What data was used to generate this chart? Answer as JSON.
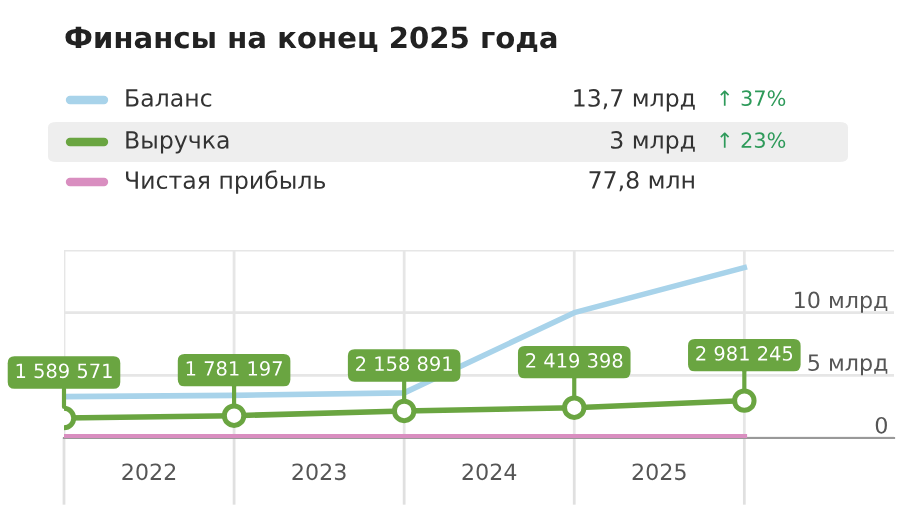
{
  "chart_data": {
    "type": "line",
    "title": "Финансы на конец 2025 года",
    "x": [
      2021,
      2022,
      2023,
      2024,
      2025
    ],
    "series": [
      {
        "name": "Баланс",
        "color": "#a8d3ea",
        "values": [
          3.3,
          3.4,
          3.6,
          10.0,
          13.6
        ],
        "marker": "none"
      },
      {
        "name": "Выручка",
        "color": "#6aa541",
        "values": [
          1.589571,
          1.781197,
          2.158891,
          2.419398,
          2.981245
        ],
        "marker": "circle"
      },
      {
        "name": "Чистая прибыль",
        "color": "#d98ec0",
        "values": [
          0.1,
          0.1,
          0.1,
          0.1,
          0.1
        ],
        "marker": "none"
      }
    ],
    "annotations": [
      "13,7 млрд",
      "↑ 37%",
      "3 млрд",
      "↑ 23%",
      "77,8 млн",
      {
        "text": "1 589 571",
        "x": 2021,
        "y": 1.589571
      },
      {
        "text": "1 781 197",
        "x": 2022,
        "y": 1.781197
      },
      {
        "text": "2 158 891",
        "x": 2023,
        "y": 2.158891
      },
      {
        "text": "2 419 398",
        "x": 2024,
        "y": 2.419398
      },
      {
        "text": "2 981 245",
        "x": 2025,
        "y": 2.981245
      }
    ],
    "xlim": [
      2021,
      2025.88
    ],
    "xticks": [
      {
        "value": 2021,
        "label": null
      },
      {
        "value": 2021.5,
        "label": "2022"
      },
      {
        "value": 2022,
        "label": null
      },
      {
        "value": 2022.5,
        "label": "2023"
      },
      {
        "value": 2023,
        "label": null
      },
      {
        "value": 2023.5,
        "label": "2024"
      },
      {
        "value": 2024,
        "label": null
      },
      {
        "value": 2024.5,
        "label": "2025"
      },
      {
        "value": 2025,
        "label": null
      }
    ],
    "ylim": [
      0,
      15
    ],
    "yticks": [
      0,
      {
        "value": 5,
        "label": "5 млрд"
      },
      {
        "value": 10,
        "label": "10 млрд"
      },
      {
        "value": 15,
        "label": null
      }
    ],
    "grid": true,
    "legend": "top",
    "line_style": "solid"
  }
}
